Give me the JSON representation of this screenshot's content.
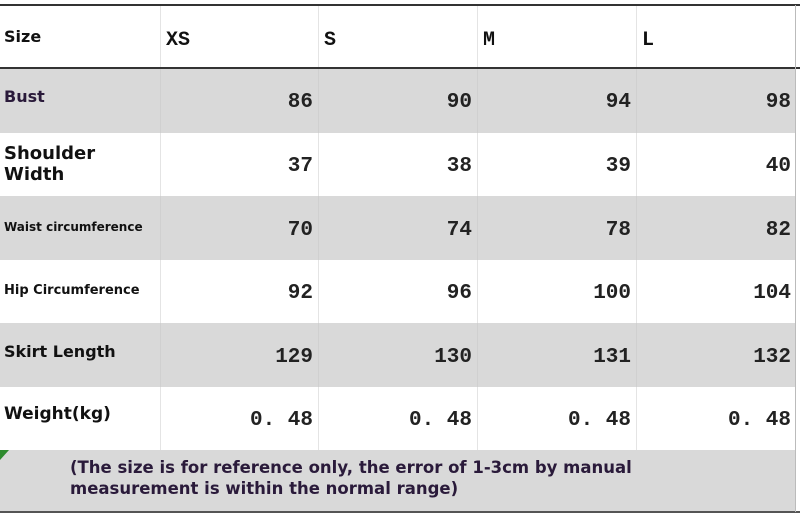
{
  "table": {
    "header": [
      "Size",
      "XS",
      "S",
      "M",
      "L"
    ],
    "rows": [
      [
        "Bust",
        86,
        90,
        94,
        98
      ],
      [
        "Shoulder Width",
        37,
        38,
        39,
        40
      ],
      [
        "Waist circumference",
        70,
        74,
        78,
        82
      ],
      [
        "Hip Circumference",
        92,
        96,
        100,
        104
      ],
      [
        "Skirt Length",
        129,
        130,
        131,
        132
      ],
      [
        "Weight(kg)",
        "0. 48",
        "0. 48",
        "0. 48",
        "0. 48"
      ]
    ],
    "note": "(The size is for reference only, the error of 1-3cm by manual measurement is within the normal range)"
  }
}
